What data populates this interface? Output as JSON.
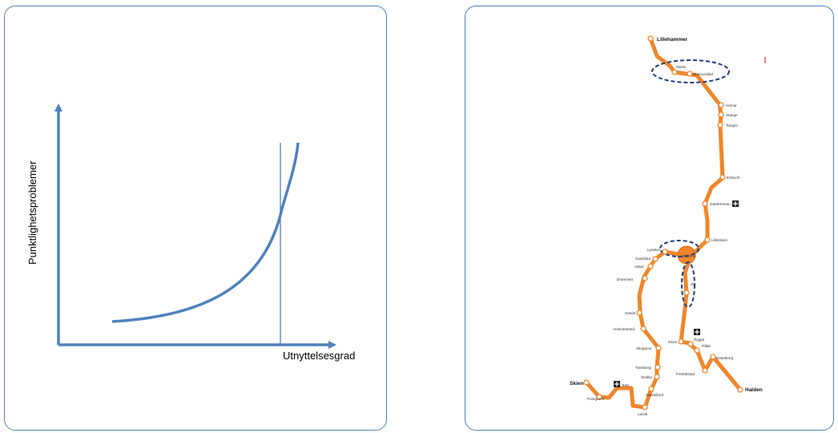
{
  "left_panel": {
    "y_axis_label": "Punktlighetsproblemer",
    "x_axis_label": "Utnyttelsesgrad",
    "line_color": "#4f81bd"
  },
  "right_panel": {
    "line_color": "#f0862a",
    "highlight_color": "#1f3d7a",
    "stations": {
      "lillehammer": "Lillehammer",
      "moelv": "Moelv",
      "brumunddal": "Brumunddal",
      "hamar": "Hamar",
      "stange": "Stange",
      "tangen": "Tangen",
      "eidsvoll": "Eidsvoll",
      "gardermoen": "Gardermoen",
      "lillestrom": "Lillestrøm",
      "oslo": "OSLO S",
      "lysaker": "Lysaker",
      "sandvika": "Sandvika",
      "asker": "Asker",
      "drammen": "Drammen",
      "sande": "Sande",
      "holmestrand": "Holmestrand",
      "skoppum": "Skoppum",
      "tonsberg": "Tønsberg",
      "stokke": "Stokke",
      "torp": "Torp",
      "sandefjord": "Sandefjord",
      "larvik": "Larvik",
      "porsgrunn": "Porsgrunn",
      "skien": "Skien",
      "ski": "Ski",
      "moss": "Moss",
      "rygge": "Rygge",
      "rade": "Råde",
      "fredrikstad": "Fredrikstad",
      "sarpsborg": "Sarpsborg",
      "halden": "Halden"
    }
  }
}
